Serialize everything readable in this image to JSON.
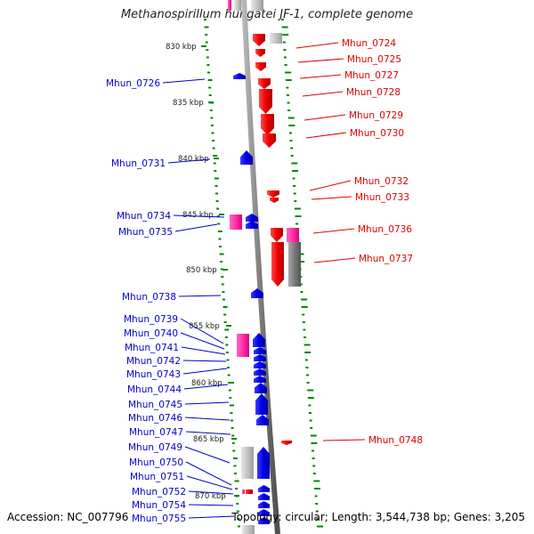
{
  "title": "Methanospirillum hungatei JF-1, complete genome",
  "footer": {
    "accession": "Accession: NC_007796",
    "summary": "Topology: circular; Length: 3,544,738 bp; Genes: 3,205"
  },
  "colors": {
    "forward_gene": "#ff0000",
    "reverse_gene": "#0000ff",
    "rna_gene": "#ff33aa",
    "other_feature": "#808080",
    "gc_ticks": "#008800",
    "backbone": "#808080"
  },
  "scale_labels": [
    "830 kbp",
    "835 kbp",
    "840 kbp",
    "845 kbp",
    "850 kbp",
    "855 kbp",
    "860 kbp",
    "865 kbp",
    "870 kbp"
  ],
  "genes_right": [
    "Mhun_0724",
    "Mhun_0725",
    "Mhun_0727",
    "Mhun_0728",
    "Mhun_0729",
    "Mhun_0730",
    "Mhun_0732",
    "Mhun_0733",
    "Mhun_0736",
    "Mhun_0737",
    "Mhun_0748"
  ],
  "genes_left": [
    "Mhun_0726",
    "Mhun_0731",
    "Mhun_0734",
    "Mhun_0735",
    "Mhun_0738",
    "Mhun_0739",
    "Mhun_0740",
    "Mhun_0741",
    "Mhun_0742",
    "Mhun_0743",
    "Mhun_0744",
    "Mhun_0745",
    "Mhun_0746",
    "Mhun_0747",
    "Mhun_0749",
    "Mhun_0750",
    "Mhun_0751",
    "Mhun_0752",
    "Mhun_0754",
    "Mhun_0755"
  ]
}
